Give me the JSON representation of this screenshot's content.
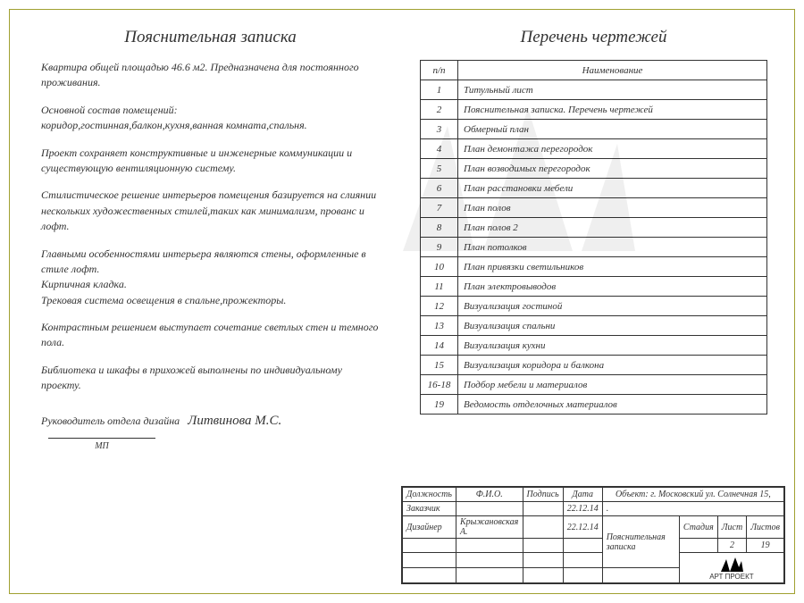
{
  "left": {
    "title": "Пояснительная записка",
    "paras": [
      "Квартира общей площадью 46.6 м2. Предназначена для постоянного проживания.",
      "Основной состав помещений:\nкоридор,гостинная,балкон,кухня,ванная комната,спальня.",
      "Проект сохраняет конструктивные и инженерные коммуникации и существующую вентиляционную систему.",
      "Стилистическое решение интерьеров помещения базируется на слиянии нескольких художественных стилей,таких как минимализм, прованс и лофт.",
      "Главными особенностями интерьера являются стены, оформленные в стиле лофт.\nКирпичная кладка.\nТрековая система освещения в спальне,прожекторы.",
      "Контрастным решением выступает сочетание светлых стен и темного пола.",
      "Библиотека и шкафы в прихожей выполнены по индивидуальному проекту."
    ],
    "signature_label": "Руководитель отдела дизайна",
    "signature_name": "Литвинова М.С.",
    "mp": "МП"
  },
  "right": {
    "title": "Перечень чертежей",
    "col_num": "п/п",
    "col_name": "Наименование",
    "rows": [
      {
        "n": "1",
        "name": "Титульный лист"
      },
      {
        "n": "2",
        "name": "Пояснительная записка. Перечень чертежей"
      },
      {
        "n": "3",
        "name": "Обмерный план"
      },
      {
        "n": "4",
        "name": "План демонтажа перегородок"
      },
      {
        "n": "5",
        "name": "План возводимых перегородок"
      },
      {
        "n": "6",
        "name": "План расстановки мебели"
      },
      {
        "n": "7",
        "name": "План полов"
      },
      {
        "n": "8",
        "name": "План полов 2"
      },
      {
        "n": "9",
        "name": "План потолков"
      },
      {
        "n": "10",
        "name": "План привязки светильников"
      },
      {
        "n": "11",
        "name": "План электровыводов"
      },
      {
        "n": "12",
        "name": "Визуализация гостиной"
      },
      {
        "n": "13",
        "name": "Визуализация спальни"
      },
      {
        "n": "14",
        "name": "Визуализация кухни"
      },
      {
        "n": "15",
        "name": "Визуализация коридора и балкона"
      },
      {
        "n": "16-18",
        "name": "Подбор мебели и материалов"
      },
      {
        "n": "19",
        "name": "Ведомость отделочных материалов"
      }
    ]
  },
  "titleblock": {
    "hdr_role": "Должность",
    "hdr_fio": "Ф.И.О.",
    "hdr_sign": "Подпись",
    "hdr_date": "Дата",
    "object_label": "Объект:",
    "object_value": "г. Московский ул. Солнечная 15,",
    "role_customer": "Заказчик",
    "role_designer": "Дизайнер",
    "designer_name": "Крыжановская А.",
    "date1": "22.12.14",
    "date2": "22.12.14",
    "doc_title": "Пояснительная записка",
    "stage": "Стадия",
    "sheet": "Лист",
    "sheets": "Листов",
    "sheet_num": "2",
    "sheets_num": "19",
    "logo_text": "АРТ ПРОЕКТ"
  },
  "colors": {
    "border": "#a0a030",
    "text": "#323232",
    "line": "#333333"
  }
}
